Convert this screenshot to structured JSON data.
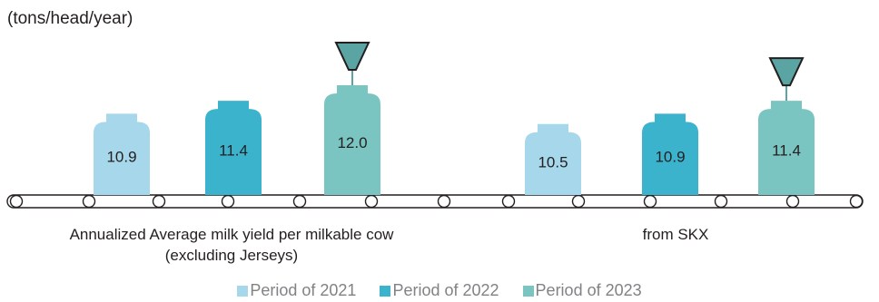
{
  "unit_label": "(tons/head/year)",
  "colors": {
    "p2021": "#a6d7ea",
    "p2022": "#3cb3cd",
    "p2023": "#7ac5c1",
    "funnel": "#5aa5a3",
    "belt": "#231f20"
  },
  "chart_data": {
    "type": "bar",
    "categories": [
      [
        "Annualized Average milk yield per milkable cow",
        "(excluding Jerseys)"
      ],
      [
        "from SKX"
      ]
    ],
    "series": [
      {
        "name": "Period of 2021",
        "values": [
          10.9,
          10.5
        ],
        "labels": [
          "10.9",
          "10.5"
        ]
      },
      {
        "name": "Period of 2022",
        "values": [
          11.4,
          10.9
        ],
        "labels": [
          "11.4",
          "10.9"
        ]
      },
      {
        "name": "Period of 2023",
        "values": [
          12.0,
          11.4
        ],
        "labels": [
          "12.0",
          "11.4"
        ]
      }
    ],
    "highlight_series": "Period of 2023",
    "legend_position": "bottom",
    "grid": false
  }
}
